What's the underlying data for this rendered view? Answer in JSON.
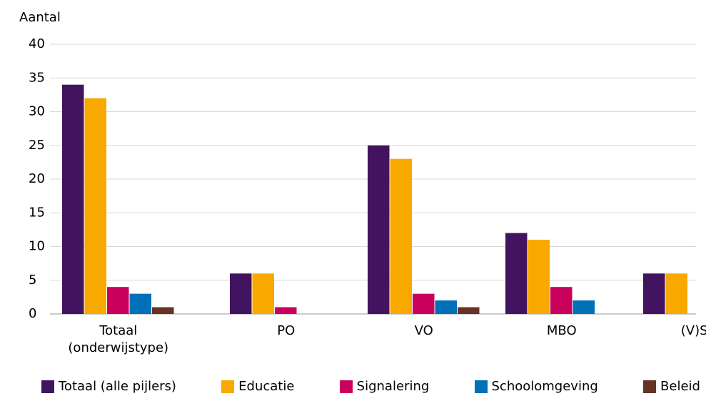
{
  "chart_data": {
    "type": "bar",
    "y_label": "Aantal",
    "categories": [
      "Totaal (onderwijstype)",
      "PO",
      "VO",
      "MBO",
      "(V)SO"
    ],
    "series": [
      {
        "name": "Totaal (alle pijlers)",
        "color": "#42145f",
        "values": [
          34,
          6,
          25,
          12,
          6
        ]
      },
      {
        "name": "Educatie",
        "color": "#f9a800",
        "values": [
          32,
          6,
          23,
          11,
          6
        ]
      },
      {
        "name": "Signalering",
        "color": "#ca005d",
        "values": [
          4,
          1,
          3,
          4,
          0
        ]
      },
      {
        "name": "Schoolomgeving",
        "color": "#0070b8",
        "values": [
          3,
          0,
          2,
          2,
          0
        ]
      },
      {
        "name": "Beleid",
        "color": "#673327",
        "values": [
          1,
          0,
          1,
          0,
          0
        ]
      }
    ],
    "ylim": [
      0,
      40
    ],
    "yticks": [
      0,
      5,
      10,
      15,
      20,
      25,
      30,
      35,
      40
    ],
    "grid": true
  }
}
